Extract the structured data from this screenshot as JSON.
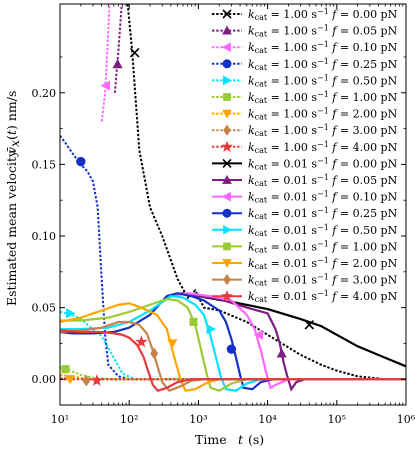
{
  "chart_data": {
    "type": "line",
    "title": "",
    "xlabel": "Time  t (s)",
    "ylabel": "Estimated mean velocity  v̄x(t) nm/s",
    "xscale": "log",
    "xlim": [
      10,
      1000000
    ],
    "ylim": [
      -0.018,
      0.262
    ],
    "grid": false,
    "legend_position": "top-right",
    "xticks": [
      {
        "value": 10,
        "label": "10¹"
      },
      {
        "value": 100,
        "label": "10²"
      },
      {
        "value": 1000,
        "label": "10³"
      },
      {
        "value": 10000,
        "label": "10⁴"
      },
      {
        "value": 100000,
        "label": "10⁵"
      },
      {
        "value": 1000000,
        "label": "10⁶"
      }
    ],
    "yticks": [
      {
        "value": 0.0,
        "label": "0.00"
      },
      {
        "value": 0.05,
        "label": "0.05"
      },
      {
        "value": 0.1,
        "label": "0.10"
      },
      {
        "value": 0.15,
        "label": "0.15"
      },
      {
        "value": 0.2,
        "label": "0.20"
      }
    ],
    "series": [
      {
        "name": "kcat = 1.00 s⁻¹  f = 0.00 pN",
        "color": "#000000",
        "dash": "dot",
        "marker": "x",
        "points": [
          [
            95,
            0.262
          ],
          [
            110,
            0.23
          ],
          [
            140,
            0.16
          ],
          [
            200,
            0.12
          ],
          [
            300,
            0.1
          ],
          [
            500,
            0.07
          ],
          [
            700,
            0.057
          ],
          [
            900,
            0.062
          ],
          [
            1200,
            0.05
          ],
          [
            2000,
            0.048
          ],
          [
            5000,
            0.04
          ],
          [
            10000,
            0.031
          ],
          [
            30000,
            0.017
          ],
          [
            60000,
            0.01
          ],
          [
            100000,
            0.006
          ],
          [
            200000,
            0.002
          ],
          [
            500000,
            0.0
          ],
          [
            1000000,
            0.0
          ]
        ],
        "markers": [
          [
            120,
            0.228
          ]
        ]
      },
      {
        "name": "kcat = 1.00 s⁻¹  f = 0.05 pN",
        "color": "#7e1e80",
        "dash": "dot",
        "marker": "triangle-up",
        "points": [
          [
            62,
            0.2
          ],
          [
            70,
            0.23
          ],
          [
            78,
            0.262
          ]
        ],
        "markers": [
          [
            68,
            0.22
          ]
        ]
      },
      {
        "name": "kcat = 1.00 s⁻¹  f = 0.10 pN",
        "color": "#ff66ff",
        "dash": "dot",
        "marker": "triangle-left",
        "points": [
          [
            40,
            0.18
          ],
          [
            45,
            0.2
          ],
          [
            52,
            0.262
          ]
        ],
        "markers": [
          [
            46,
            0.205
          ]
        ]
      },
      {
        "name": "kcat = 1.00 s⁻¹  f = 0.25 pN",
        "color": "#1430c8",
        "dash": "dot",
        "marker": "circle",
        "points": [
          [
            10,
            0.17
          ],
          [
            12,
            0.165
          ],
          [
            15,
            0.158
          ],
          [
            20,
            0.15
          ],
          [
            25,
            0.145
          ],
          [
            30,
            0.138
          ],
          [
            35,
            0.12
          ],
          [
            40,
            0.07
          ],
          [
            45,
            0.03
          ],
          [
            50,
            0.01
          ],
          [
            70,
            0.002
          ],
          [
            100,
            0.0
          ],
          [
            1000000,
            0.0
          ]
        ],
        "markers": [
          [
            20,
            0.152
          ]
        ]
      },
      {
        "name": "kcat = 1.00 s⁻¹  f = 0.50 pN",
        "color": "#00e5ff",
        "dash": "dot",
        "marker": "triangle-right",
        "points": [
          [
            10,
            0.047
          ],
          [
            15,
            0.045
          ],
          [
            20,
            0.042
          ],
          [
            40,
            0.03
          ],
          [
            60,
            0.015
          ],
          [
            80,
            0.004
          ],
          [
            120,
            0.0
          ],
          [
            1000000,
            0.0
          ]
        ],
        "markers": [
          [
            14,
            0.046
          ]
        ]
      },
      {
        "name": "kcat = 1.00 s⁻¹  f = 1.00 pN",
        "color": "#99cc33",
        "dash": "dot",
        "marker": "square",
        "points": [
          [
            10,
            0.008
          ],
          [
            12,
            0.007
          ],
          [
            14,
            0.006
          ],
          [
            20,
            0.003
          ],
          [
            30,
            0.001
          ],
          [
            60,
            0.0
          ],
          [
            1000000,
            0.0
          ]
        ],
        "markers": [
          [
            12,
            0.007
          ]
        ]
      },
      {
        "name": "kcat = 1.00 s⁻¹  f = 2.00 pN",
        "color": "#ffa500",
        "dash": "dot",
        "marker": "triangle-down",
        "points": [
          [
            10,
            0.003
          ],
          [
            15,
            0.002
          ],
          [
            25,
            0.0
          ],
          [
            1000000,
            0.0
          ]
        ],
        "markers": [
          [
            14,
            0.0
          ]
        ]
      },
      {
        "name": "kcat = 1.00 s⁻¹  f = 3.00 pN",
        "color": "#c8834a",
        "dash": "dot",
        "marker": "diamond",
        "points": [
          [
            10,
            0.001
          ],
          [
            20,
            0.0
          ],
          [
            1000000,
            0.0
          ]
        ],
        "markers": [
          [
            24,
            -0.001
          ]
        ]
      },
      {
        "name": "kcat = 1.00 s⁻¹  f = 4.00 pN",
        "color": "#e8383d",
        "dash": "dot",
        "marker": "star",
        "points": [
          [
            10,
            0.0
          ],
          [
            1000000,
            0.0
          ]
        ],
        "markers": [
          [
            34,
            -0.001
          ]
        ]
      },
      {
        "name": "kcat = 0.01 s⁻¹  f = 0.00 pN",
        "color": "#000000",
        "dash": "solid",
        "marker": "x",
        "points": [
          [
            400,
            0.058
          ],
          [
            600,
            0.06
          ],
          [
            1000,
            0.058
          ],
          [
            3000,
            0.054
          ],
          [
            10000,
            0.049
          ],
          [
            30000,
            0.042
          ],
          [
            60000,
            0.037
          ],
          [
            100000,
            0.031
          ],
          [
            200000,
            0.023
          ],
          [
            500000,
            0.015
          ],
          [
            1000000,
            0.009
          ]
        ],
        "markers": [
          [
            40000,
            0.038
          ]
        ]
      },
      {
        "name": "kcat = 0.01 s⁻¹  f = 0.05 pN",
        "color": "#7e1e80",
        "dash": "solid",
        "marker": "triangle-up",
        "points": [
          [
            400,
            0.058
          ],
          [
            600,
            0.06
          ],
          [
            1000,
            0.058
          ],
          [
            2000,
            0.056
          ],
          [
            5000,
            0.05
          ],
          [
            10000,
            0.046
          ],
          [
            13000,
            0.035
          ],
          [
            15000,
            0.025
          ],
          [
            17000,
            0.012
          ],
          [
            19000,
            0.003
          ],
          [
            22000,
            -0.007
          ],
          [
            26000,
            -0.002
          ],
          [
            35000,
            0.0
          ],
          [
            1000000,
            0.0
          ]
        ],
        "markers": [
          [
            16000,
            0.018
          ]
        ]
      },
      {
        "name": "kcat = 0.01 s⁻¹  f = 0.10 pN",
        "color": "#ff66ff",
        "dash": "solid",
        "marker": "triangle-left",
        "points": [
          [
            400,
            0.058
          ],
          [
            700,
            0.06
          ],
          [
            1500,
            0.058
          ],
          [
            3000,
            0.055
          ],
          [
            5000,
            0.045
          ],
          [
            6500,
            0.035
          ],
          [
            8000,
            0.02
          ],
          [
            9500,
            0.005
          ],
          [
            11000,
            -0.006
          ],
          [
            13000,
            -0.004
          ],
          [
            20000,
            0.0
          ],
          [
            1000000,
            0.0
          ]
        ],
        "markers": [
          [
            7500,
            0.031
          ]
        ]
      },
      {
        "name": "kcat = 0.01 s⁻¹  f = 0.25 pN",
        "color": "#1430c8",
        "dash": "solid",
        "marker": "circle",
        "points": [
          [
            10,
            0.033
          ],
          [
            15,
            0.032
          ],
          [
            30,
            0.032
          ],
          [
            60,
            0.033
          ],
          [
            100,
            0.036
          ],
          [
            200,
            0.045
          ],
          [
            350,
            0.058
          ],
          [
            500,
            0.06
          ],
          [
            800,
            0.058
          ],
          [
            1200,
            0.055
          ],
          [
            2000,
            0.048
          ],
          [
            2500,
            0.04
          ],
          [
            3000,
            0.028
          ],
          [
            3500,
            0.015
          ],
          [
            4000,
            0.003
          ],
          [
            4500,
            -0.006
          ],
          [
            6000,
            -0.007
          ],
          [
            8000,
            -0.002
          ],
          [
            12000,
            0.0
          ],
          [
            1000000,
            0.0
          ]
        ],
        "markers": [
          [
            3000,
            0.021
          ]
        ]
      },
      {
        "name": "kcat = 0.01 s⁻¹  f = 0.50 pN",
        "color": "#00e5ff",
        "dash": "solid",
        "marker": "triangle-right",
        "points": [
          [
            10,
            0.035
          ],
          [
            20,
            0.035
          ],
          [
            50,
            0.036
          ],
          [
            100,
            0.04
          ],
          [
            200,
            0.048
          ],
          [
            400,
            0.058
          ],
          [
            600,
            0.057
          ],
          [
            900,
            0.052
          ],
          [
            1200,
            0.045
          ],
          [
            1500,
            0.03
          ],
          [
            1800,
            0.015
          ],
          [
            2100,
            0.002
          ],
          [
            2500,
            -0.007
          ],
          [
            3500,
            -0.008
          ],
          [
            5000,
            -0.003
          ],
          [
            8000,
            0.0
          ],
          [
            1000000,
            0.0
          ]
        ],
        "markers": [
          [
            1500,
            0.035
          ]
        ]
      },
      {
        "name": "kcat = 0.01 s⁻¹  f = 1.00 pN",
        "color": "#99cc33",
        "dash": "solid",
        "marker": "square",
        "points": [
          [
            10,
            0.041
          ],
          [
            20,
            0.041
          ],
          [
            50,
            0.043
          ],
          [
            100,
            0.047
          ],
          [
            200,
            0.052
          ],
          [
            350,
            0.056
          ],
          [
            500,
            0.055
          ],
          [
            700,
            0.05
          ],
          [
            900,
            0.038
          ],
          [
            1100,
            0.02
          ],
          [
            1300,
            0.005
          ],
          [
            1500,
            -0.006
          ],
          [
            2000,
            -0.008
          ],
          [
            3000,
            -0.003
          ],
          [
            5000,
            0.0
          ],
          [
            1000000,
            0.0
          ]
        ],
        "markers": [
          [
            850,
            0.04
          ]
        ]
      },
      {
        "name": "kcat = 0.01 s⁻¹  f = 2.00 pN",
        "color": "#ffa500",
        "dash": "solid",
        "marker": "triangle-down",
        "points": [
          [
            10,
            0.04
          ],
          [
            20,
            0.043
          ],
          [
            40,
            0.048
          ],
          [
            70,
            0.052
          ],
          [
            100,
            0.053
          ],
          [
            150,
            0.05
          ],
          [
            250,
            0.045
          ],
          [
            350,
            0.035
          ],
          [
            450,
            0.015
          ],
          [
            550,
            0.0
          ],
          [
            650,
            -0.008
          ],
          [
            900,
            -0.007
          ],
          [
            1400,
            -0.002
          ],
          [
            2000,
            0.0
          ],
          [
            1000000,
            0.0
          ]
        ],
        "markers": [
          [
            420,
            0.025
          ]
        ]
      },
      {
        "name": "kcat = 0.01 s⁻¹  f = 3.00 pN",
        "color": "#c8834a",
        "dash": "solid",
        "marker": "diamond",
        "points": [
          [
            10,
            0.033
          ],
          [
            20,
            0.034
          ],
          [
            40,
            0.036
          ],
          [
            70,
            0.04
          ],
          [
            100,
            0.04
          ],
          [
            140,
            0.038
          ],
          [
            180,
            0.032
          ],
          [
            220,
            0.02
          ],
          [
            260,
            0.008
          ],
          [
            300,
            -0.002
          ],
          [
            380,
            -0.008
          ],
          [
            550,
            -0.005
          ],
          [
            800,
            -0.001
          ],
          [
            1200,
            0.0
          ],
          [
            1000000,
            0.0
          ]
        ],
        "markers": [
          [
            230,
            0.018
          ]
        ]
      },
      {
        "name": "kcat = 0.01 s⁻¹  f = 4.00 pN",
        "color": "#e8383d",
        "dash": "solid",
        "marker": "star",
        "points": [
          [
            10,
            0.034
          ],
          [
            20,
            0.033
          ],
          [
            40,
            0.033
          ],
          [
            60,
            0.032
          ],
          [
            80,
            0.031
          ],
          [
            100,
            0.029
          ],
          [
            130,
            0.024
          ],
          [
            160,
            0.016
          ],
          [
            190,
            0.005
          ],
          [
            220,
            -0.004
          ],
          [
            260,
            -0.008
          ],
          [
            350,
            -0.006
          ],
          [
            500,
            -0.002
          ],
          [
            800,
            0.0
          ],
          [
            1000000,
            0.0
          ]
        ],
        "markers": [
          [
            150,
            0.026
          ]
        ]
      }
    ]
  },
  "legend": {
    "entries": [
      {
        "kcat": "1.00",
        "f": "0.00"
      },
      {
        "kcat": "1.00",
        "f": "0.05"
      },
      {
        "kcat": "1.00",
        "f": "0.10"
      },
      {
        "kcat": "1.00",
        "f": "0.25"
      },
      {
        "kcat": "1.00",
        "f": "0.50"
      },
      {
        "kcat": "1.00",
        "f": "1.00"
      },
      {
        "kcat": "1.00",
        "f": "2.00"
      },
      {
        "kcat": "1.00",
        "f": "3.00"
      },
      {
        "kcat": "1.00",
        "f": "4.00"
      },
      {
        "kcat": "0.01",
        "f": "0.00"
      },
      {
        "kcat": "0.01",
        "f": "0.05"
      },
      {
        "kcat": "0.01",
        "f": "0.10"
      },
      {
        "kcat": "0.01",
        "f": "0.25"
      },
      {
        "kcat": "0.01",
        "f": "0.50"
      },
      {
        "kcat": "0.01",
        "f": "1.00"
      },
      {
        "kcat": "0.01",
        "f": "2.00"
      },
      {
        "kcat": "0.01",
        "f": "3.00"
      },
      {
        "kcat": "0.01",
        "f": "4.00"
      }
    ]
  }
}
